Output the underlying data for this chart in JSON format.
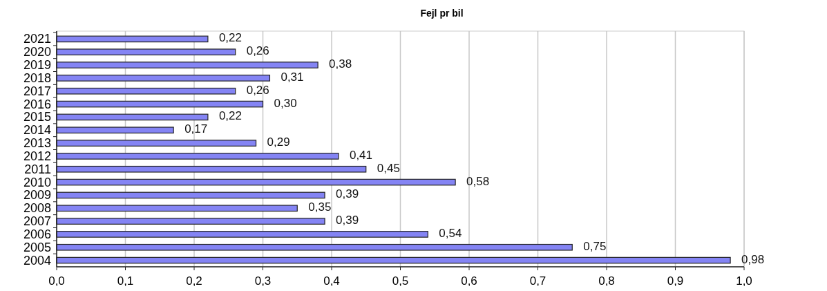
{
  "chart_data": {
    "type": "bar",
    "orientation": "horizontal",
    "title": "Fejl pr bil",
    "categories": [
      "2021",
      "2020",
      "2019",
      "2018",
      "2017",
      "2016",
      "2015",
      "2014",
      "2013",
      "2012",
      "2011",
      "2010",
      "2009",
      "2008",
      "2007",
      "2006",
      "2005",
      "2004"
    ],
    "values": [
      0.22,
      0.26,
      0.38,
      0.31,
      0.26,
      0.3,
      0.22,
      0.17,
      0.29,
      0.41,
      0.45,
      0.58,
      0.39,
      0.35,
      0.39,
      0.54,
      0.75,
      0.98
    ],
    "value_labels": [
      "0,22",
      "0,26",
      "0,38",
      "0,31",
      "0,26",
      "0,30",
      "0,22",
      "0,17",
      "0,29",
      "0,41",
      "0,45",
      "0,58",
      "0,39",
      "0,35",
      "0,39",
      "0,54",
      "0,75",
      "0,98"
    ],
    "color": "#8484f4",
    "xlim": [
      0,
      1
    ],
    "xticks": [
      {
        "value": 0,
        "label": "0,0"
      },
      {
        "value": 0.1,
        "label": "0,1"
      },
      {
        "value": 0.2,
        "label": "0,2"
      },
      {
        "value": 0.3,
        "label": "0,3"
      },
      {
        "value": 0.4,
        "label": "0,4"
      },
      {
        "value": 0.5,
        "label": "0,5"
      },
      {
        "value": 0.6,
        "label": "0,6"
      },
      {
        "value": 0.7,
        "label": "0,7"
      },
      {
        "value": 0.8,
        "label": "0,8"
      },
      {
        "value": 0.9,
        "label": "0,9"
      },
      {
        "value": 1,
        "label": "1,0"
      }
    ],
    "grid": "x"
  }
}
